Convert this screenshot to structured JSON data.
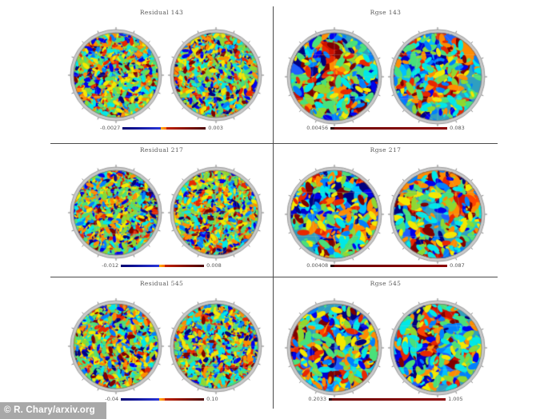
{
  "figure": {
    "watermark": "© R. Chary/arxiv.org"
  },
  "palette": {
    "divider": "#4d4d4d",
    "rim": "#c9c9c9",
    "jet": [
      "#00007f",
      "#0000ee",
      "#0080ff",
      "#00e8e8",
      "#49e07a",
      "#8fd830",
      "#f4e800",
      "#ff8c00",
      "#e82800",
      "#7f0000"
    ],
    "colorbar_styles": {
      "diverging": [
        {
          "w": 46,
          "from": "#000070",
          "to": "#2a35d8"
        },
        {
          "w": 7,
          "from": "#ffb400",
          "to": "#ff6a00"
        },
        {
          "w": 47,
          "from": "#c22000",
          "to": "#4a0000"
        }
      ],
      "sequential": [
        {
          "w": 3,
          "from": "#1a0000",
          "to": "#3a0000"
        },
        {
          "w": 97,
          "from": "#6e0000",
          "to": "#8b0000"
        }
      ]
    }
  },
  "panels": [
    {
      "id": "residual-143",
      "title": "Residual 143",
      "map_style": "residual",
      "colorbar": {
        "style": "diverging",
        "min_label": "-0.0027",
        "max_label": "0.003"
      }
    },
    {
      "id": "rgse-143",
      "title": "Rgse 143",
      "map_style": "rgse",
      "colorbar": {
        "style": "sequential",
        "min_label": "0.00456",
        "max_label": "0.083"
      }
    },
    {
      "id": "residual-217",
      "title": "Residual 217",
      "map_style": "residual",
      "colorbar": {
        "style": "diverging",
        "min_label": "-0.012",
        "max_label": "0.008"
      }
    },
    {
      "id": "rgse-217",
      "title": "Rgse 217",
      "map_style": "rgse",
      "colorbar": {
        "style": "sequential",
        "min_label": "0.00408",
        "max_label": "0.087"
      }
    },
    {
      "id": "residual-545",
      "title": "Residual 545",
      "map_style": "residual",
      "colorbar": {
        "style": "diverging",
        "min_label": "-0.04",
        "max_label": "0.10"
      }
    },
    {
      "id": "rgse-545",
      "title": "Rgse 545",
      "map_style": "rgse",
      "colorbar": {
        "style": "sequential",
        "min_label": "0.2033",
        "max_label": "1.005"
      }
    }
  ]
}
